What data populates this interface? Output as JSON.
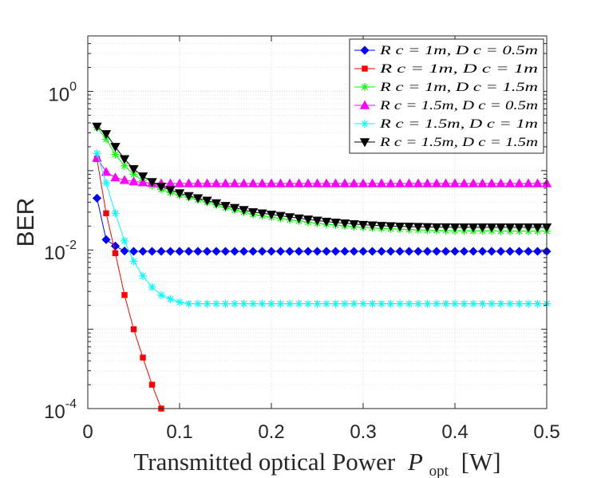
{
  "chart_data": {
    "type": "line",
    "title": "",
    "xlabel": "Transmitted optical Power",
    "xlabel_symbol": "P",
    "xlabel_sub": "opt",
    "xlabel_unit": "[W]",
    "ylabel": "BER",
    "yscale": "log",
    "xlim": [
      0,
      0.5
    ],
    "ylim": [
      0.0001,
      5
    ],
    "xticks": [
      0,
      0.1,
      0.2,
      0.3,
      0.4,
      0.5
    ],
    "xtick_labels": [
      "0",
      "0.1",
      "0.2",
      "0.3",
      "0.4",
      "0.5"
    ],
    "yticks": [
      0.0001,
      0.01,
      1
    ],
    "ytick_labels": [
      {
        "base": "10",
        "exp": "-4"
      },
      {
        "base": "10",
        "exp": "-2"
      },
      {
        "base": "10",
        "exp": "0"
      }
    ],
    "grid": true,
    "legend_position": "top-right",
    "series": [
      {
        "name": "R_c = 1m, D_c = 0.5m",
        "legend_label": "R c = 1m, D c = 0.5m",
        "color": "#0000ff",
        "marker": "diamond",
        "x": [
          0.01,
          0.02,
          0.03,
          0.04,
          0.05,
          0.06,
          0.07,
          0.08,
          0.09,
          0.1,
          0.11,
          0.12,
          0.13,
          0.14,
          0.15,
          0.16,
          0.17,
          0.18,
          0.19,
          0.2,
          0.21,
          0.22,
          0.23,
          0.24,
          0.25,
          0.26,
          0.27,
          0.28,
          0.29,
          0.3,
          0.31,
          0.32,
          0.33,
          0.34,
          0.35,
          0.36,
          0.37,
          0.38,
          0.39,
          0.4,
          0.41,
          0.42,
          0.43,
          0.44,
          0.45,
          0.46,
          0.47,
          0.48,
          0.49,
          0.5
        ],
        "y": [
          0.045,
          0.0135,
          0.0112,
          0.0097,
          0.0096,
          0.0096,
          0.0096,
          0.0096,
          0.0096,
          0.0096,
          0.0096,
          0.0096,
          0.0096,
          0.0096,
          0.0096,
          0.0096,
          0.0096,
          0.0096,
          0.0096,
          0.0096,
          0.0096,
          0.0096,
          0.0096,
          0.0096,
          0.0096,
          0.0096,
          0.0096,
          0.0096,
          0.0096,
          0.0096,
          0.0096,
          0.0096,
          0.0096,
          0.0096,
          0.0096,
          0.0096,
          0.0096,
          0.0096,
          0.0096,
          0.0096,
          0.0096,
          0.0096,
          0.0096,
          0.0096,
          0.0096,
          0.0096,
          0.0096,
          0.0096,
          0.0096,
          0.0096
        ]
      },
      {
        "name": "R_c = 1m, D_c = 1m",
        "legend_label": "R c = 1m, D c = 1m",
        "color": "#ff0000",
        "marker": "square",
        "x": [
          0.01,
          0.02,
          0.03,
          0.04,
          0.05,
          0.06,
          0.07,
          0.08
        ],
        "y": [
          0.14,
          0.029,
          0.0091,
          0.0027,
          0.001,
          0.00044,
          0.0002,
          0.0001
        ]
      },
      {
        "name": "R_c = 1m, D_c = 1.5m",
        "legend_label": "R c = 1m, D c = 1.5m",
        "color": "#00ff00",
        "marker": "asterisk",
        "x": [
          0.01,
          0.02,
          0.03,
          0.04,
          0.05,
          0.06,
          0.07,
          0.08,
          0.09,
          0.1,
          0.11,
          0.12,
          0.13,
          0.14,
          0.15,
          0.16,
          0.17,
          0.18,
          0.19,
          0.2,
          0.21,
          0.22,
          0.23,
          0.24,
          0.25,
          0.26,
          0.27,
          0.28,
          0.29,
          0.3,
          0.31,
          0.32,
          0.33,
          0.34,
          0.35,
          0.36,
          0.37,
          0.38,
          0.39,
          0.4,
          0.41,
          0.42,
          0.43,
          0.44,
          0.45,
          0.46,
          0.47,
          0.48,
          0.49,
          0.5
        ],
        "y": [
          0.35,
          0.25,
          0.16,
          0.115,
          0.09,
          0.075,
          0.065,
          0.058,
          0.053,
          0.049,
          0.046,
          0.043,
          0.04,
          0.037,
          0.034,
          0.032,
          0.03,
          0.028,
          0.027,
          0.026,
          0.025,
          0.024,
          0.0232,
          0.0224,
          0.0217,
          0.0211,
          0.0206,
          0.0201,
          0.0197,
          0.0193,
          0.019,
          0.0187,
          0.0185,
          0.0183,
          0.0181,
          0.0179,
          0.0178,
          0.0177,
          0.0176,
          0.0175,
          0.0175,
          0.0174,
          0.0174,
          0.0174,
          0.0173,
          0.0173,
          0.0173,
          0.0173,
          0.0173,
          0.0173
        ]
      },
      {
        "name": "R_c = 1.5m, D_c = 0.5m",
        "legend_label": "R c = 1.5m, D c = 0.5m",
        "color": "#ff00ff",
        "marker": "triangle-up",
        "x": [
          0.01,
          0.02,
          0.03,
          0.04,
          0.05,
          0.06,
          0.07,
          0.08,
          0.09,
          0.1,
          0.11,
          0.12,
          0.13,
          0.14,
          0.15,
          0.16,
          0.17,
          0.18,
          0.19,
          0.2,
          0.21,
          0.22,
          0.23,
          0.24,
          0.25,
          0.26,
          0.27,
          0.28,
          0.29,
          0.3,
          0.31,
          0.32,
          0.33,
          0.34,
          0.35,
          0.36,
          0.37,
          0.38,
          0.39,
          0.4,
          0.41,
          0.42,
          0.43,
          0.44,
          0.45,
          0.46,
          0.47,
          0.48,
          0.49,
          0.5
        ],
        "y": [
          0.145,
          0.096,
          0.082,
          0.076,
          0.073,
          0.071,
          0.07,
          0.069,
          0.069,
          0.069,
          0.069,
          0.069,
          0.069,
          0.069,
          0.069,
          0.069,
          0.069,
          0.069,
          0.069,
          0.069,
          0.069,
          0.069,
          0.069,
          0.069,
          0.069,
          0.069,
          0.069,
          0.069,
          0.069,
          0.069,
          0.069,
          0.069,
          0.069,
          0.069,
          0.069,
          0.069,
          0.069,
          0.069,
          0.069,
          0.069,
          0.069,
          0.069,
          0.069,
          0.069,
          0.069,
          0.069,
          0.069,
          0.069,
          0.069,
          0.069
        ]
      },
      {
        "name": "R_c = 1.5m, D_c = 1m",
        "legend_label": "R c = 1.5m, D c = 1m",
        "color": "#00ffff",
        "marker": "asterisk",
        "x": [
          0.01,
          0.02,
          0.03,
          0.04,
          0.05,
          0.06,
          0.07,
          0.08,
          0.09,
          0.1,
          0.11,
          0.12,
          0.13,
          0.14,
          0.15,
          0.16,
          0.17,
          0.18,
          0.19,
          0.2,
          0.21,
          0.22,
          0.23,
          0.24,
          0.25,
          0.26,
          0.27,
          0.28,
          0.29,
          0.3,
          0.31,
          0.32,
          0.33,
          0.34,
          0.35,
          0.36,
          0.37,
          0.38,
          0.39,
          0.4,
          0.41,
          0.42,
          0.43,
          0.44,
          0.45,
          0.46,
          0.47,
          0.48,
          0.49,
          0.5
        ],
        "y": [
          0.165,
          0.07,
          0.029,
          0.013,
          0.0072,
          0.0047,
          0.0034,
          0.0027,
          0.0024,
          0.0022,
          0.0021,
          0.0021,
          0.0021,
          0.0021,
          0.0021,
          0.0021,
          0.0021,
          0.0021,
          0.0021,
          0.0021,
          0.0021,
          0.0021,
          0.0021,
          0.0021,
          0.0021,
          0.0021,
          0.0021,
          0.0021,
          0.0021,
          0.0021,
          0.0021,
          0.0021,
          0.0021,
          0.0021,
          0.0021,
          0.0021,
          0.0021,
          0.0021,
          0.0021,
          0.0021,
          0.0021,
          0.0021,
          0.0021,
          0.0021,
          0.0021,
          0.0021,
          0.0021,
          0.0021,
          0.0021,
          0.0021
        ]
      },
      {
        "name": "R_c = 1.5m, D_c = 1.5m",
        "legend_label": "R c = 1.5m, D c = 1.5m",
        "color": "#000000",
        "marker": "triangle-down",
        "x": [
          0.01,
          0.02,
          0.03,
          0.04,
          0.05,
          0.06,
          0.07,
          0.08,
          0.09,
          0.1,
          0.11,
          0.12,
          0.13,
          0.14,
          0.15,
          0.16,
          0.17,
          0.18,
          0.19,
          0.2,
          0.21,
          0.22,
          0.23,
          0.24,
          0.25,
          0.26,
          0.27,
          0.28,
          0.29,
          0.3,
          0.31,
          0.32,
          0.33,
          0.34,
          0.35,
          0.36,
          0.37,
          0.38,
          0.39,
          0.4,
          0.41,
          0.42,
          0.43,
          0.44,
          0.45,
          0.46,
          0.47,
          0.48,
          0.49,
          0.5
        ],
        "y": [
          0.36,
          0.29,
          0.2,
          0.14,
          0.105,
          0.085,
          0.072,
          0.063,
          0.057,
          0.052,
          0.048,
          0.045,
          0.042,
          0.039,
          0.036,
          0.034,
          0.032,
          0.03,
          0.029,
          0.028,
          0.027,
          0.026,
          0.0251,
          0.0243,
          0.0235,
          0.0228,
          0.0222,
          0.0217,
          0.0212,
          0.0208,
          0.0205,
          0.0202,
          0.02,
          0.0198,
          0.0197,
          0.0196,
          0.0195,
          0.0194,
          0.0194,
          0.0193,
          0.0193,
          0.0193,
          0.0193,
          0.0193,
          0.0193,
          0.0193,
          0.0193,
          0.0193,
          0.0193,
          0.0193
        ]
      }
    ]
  }
}
